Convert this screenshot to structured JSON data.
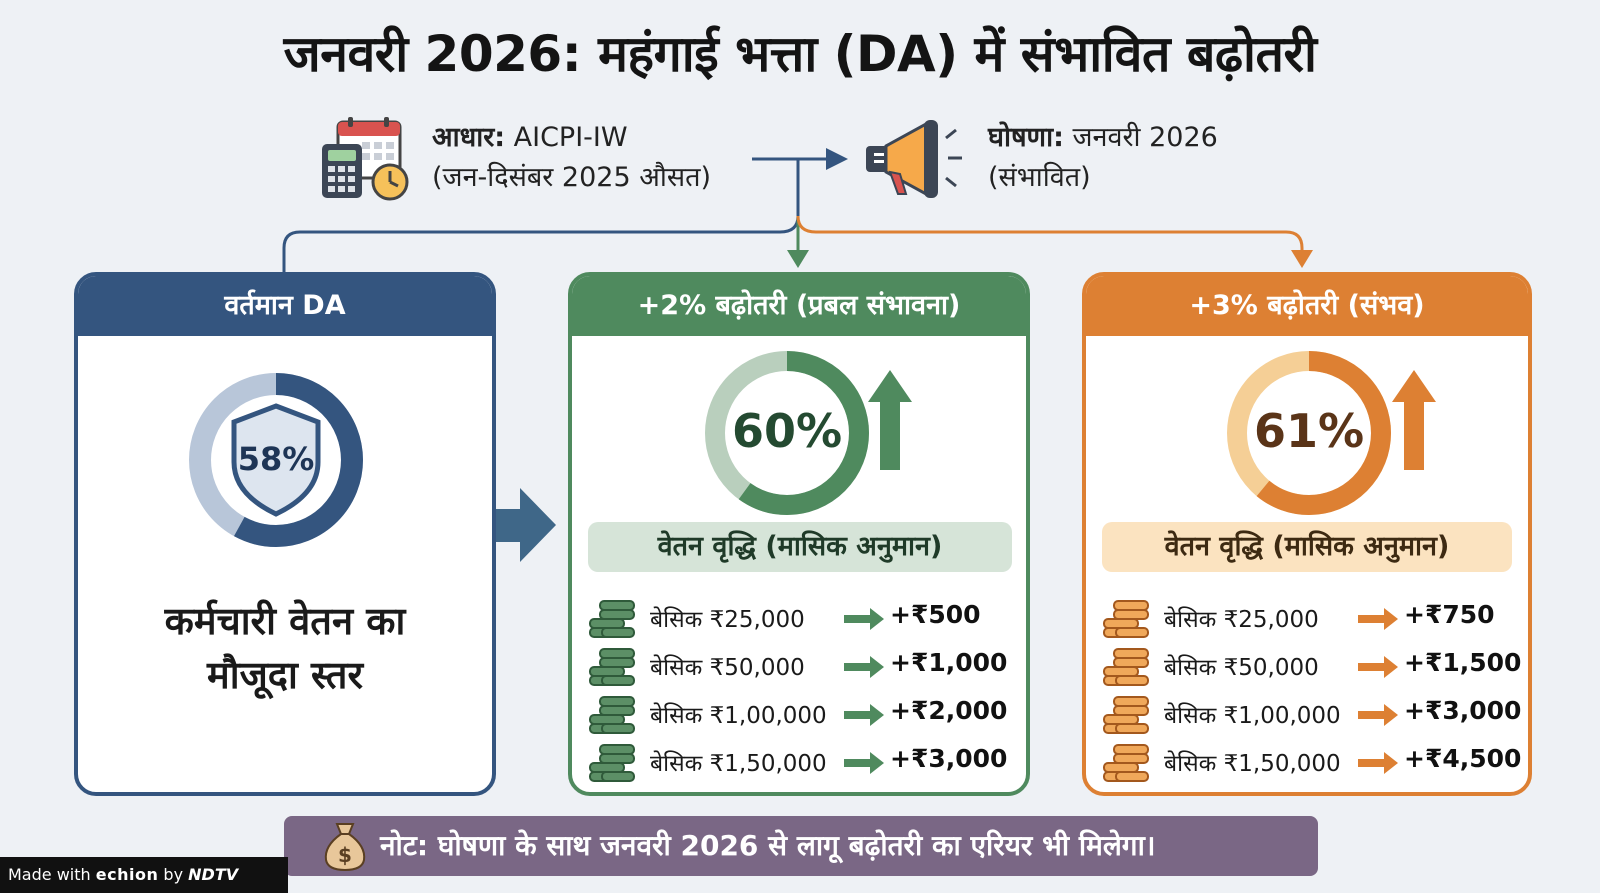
{
  "title": "जनवरी 2026: महंगाई भत्ता (DA) में संभावित बढ़ोतरी",
  "basis": {
    "label": "आधार:",
    "value": "AICPI-IW",
    "sub": "(जन-दिसंबर 2025 औसत)",
    "icon": "calendar-calculator-clock-icon"
  },
  "announcement": {
    "label": "घोषणा:",
    "value": "जनवरी 2026",
    "sub": "(संभावित)",
    "icon": "megaphone-icon"
  },
  "current": {
    "header": "वर्तमान DA",
    "percent_label": "58%",
    "percent": 58,
    "caption_line1": "कर्मचारी वेतन का",
    "caption_line2": "मौजूदा स्तर"
  },
  "scenario_2": {
    "header": "+2% बढ़ोतरी (प्रबल संभावना)",
    "percent_label": "60%",
    "percent": 60,
    "subhead": "वेतन वृद्धि (मासिक अनुमान)",
    "rows": [
      {
        "basic": "बेसिक ₹25,000",
        "increase": "+₹500"
      },
      {
        "basic": "बेसिक ₹50,000",
        "increase": "+₹1,000"
      },
      {
        "basic": "बेसिक ₹1,00,000",
        "increase": "+₹2,000"
      },
      {
        "basic": "बेसिक ₹1,50,000",
        "increase": "+₹3,000"
      }
    ]
  },
  "scenario_3": {
    "header": "+3% बढ़ोतरी (संभव)",
    "percent_label": "61%",
    "percent": 61,
    "subhead": "वेतन वृद्धि (मासिक अनुमान)",
    "rows": [
      {
        "basic": "बेसिक ₹25,000",
        "increase": "+₹750"
      },
      {
        "basic": "बेसिक ₹50,000",
        "increase": "+₹1,500"
      },
      {
        "basic": "बेसिक ₹1,00,000",
        "increase": "+₹3,000"
      },
      {
        "basic": "बेसिक ₹1,50,000",
        "increase": "+₹4,500"
      }
    ]
  },
  "note": "नोट: घोषणा के साथ जनवरी 2026 से लागू बढ़ोतरी का एरियर भी मिलेगा।",
  "footer": {
    "made_with": "Made with",
    "brand": "echion",
    "by": "by",
    "logo": "NDTV"
  },
  "colors": {
    "blue": "#34557f",
    "green": "#4f8a5e",
    "orange": "#dd8033",
    "note_bg": "#7a6785"
  }
}
